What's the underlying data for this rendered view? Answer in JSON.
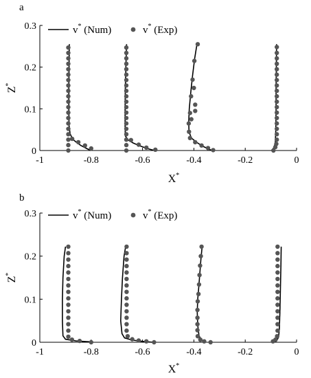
{
  "chart_data": [
    {
      "type": "scatter",
      "panel_label": "a",
      "xlabel": "X",
      "xlabel_sup": "*",
      "ylabel": "Z",
      "ylabel_sup": "*",
      "xlim": [
        -1,
        0
      ],
      "ylim": [
        0,
        0.3
      ],
      "xticks": [
        "-1",
        "-0.8",
        "-0.6",
        "-0.4",
        "-0.2",
        "0"
      ],
      "yticks": [
        "0",
        "0.1",
        "0.2",
        "0.3"
      ],
      "xtick_values": [
        -1,
        -0.8,
        -0.6,
        -0.4,
        -0.2,
        0
      ],
      "ytick_values": [
        0,
        0.1,
        0.2,
        0.3
      ],
      "legend": {
        "position": "top-left",
        "num_label": "v",
        "num_suffix": " (Num)",
        "exp_label": "v",
        "exp_suffix": " (Exp)",
        "sup": "*"
      },
      "series": [
        {
          "name": "v* (Num)",
          "style": "line",
          "color": "#000000",
          "curves": [
            [
              [
                -0.885,
                0.255
              ],
              [
                -0.886,
                0.2
              ],
              [
                -0.887,
                0.15
              ],
              [
                -0.887,
                0.1
              ],
              [
                -0.886,
                0.06
              ],
              [
                -0.882,
                0.04
              ],
              [
                -0.872,
                0.027
              ],
              [
                -0.858,
                0.02
              ],
              [
                -0.84,
                0.012
              ],
              [
                -0.818,
                0.005
              ],
              [
                -0.802,
                0.0
              ]
            ],
            [
              [
                -0.662,
                0.255
              ],
              [
                -0.665,
                0.2
              ],
              [
                -0.667,
                0.15
              ],
              [
                -0.668,
                0.1
              ],
              [
                -0.668,
                0.06
              ],
              [
                -0.667,
                0.035
              ],
              [
                -0.656,
                0.025
              ],
              [
                -0.636,
                0.018
              ],
              [
                -0.61,
                0.011
              ],
              [
                -0.583,
                0.005
              ],
              [
                -0.553,
                0.0
              ]
            ],
            [
              [
                -0.388,
                0.255
              ],
              [
                -0.397,
                0.22
              ],
              [
                -0.405,
                0.18
              ],
              [
                -0.412,
                0.14
              ],
              [
                -0.418,
                0.1
              ],
              [
                -0.42,
                0.07
              ],
              [
                -0.419,
                0.045
              ],
              [
                -0.41,
                0.03
              ],
              [
                -0.39,
                0.02
              ],
              [
                -0.365,
                0.01
              ],
              [
                -0.33,
                0.0
              ]
            ],
            [
              [
                -0.078,
                0.255
              ],
              [
                -0.079,
                0.2
              ],
              [
                -0.08,
                0.15
              ],
              [
                -0.08,
                0.1
              ],
              [
                -0.081,
                0.05
              ],
              [
                -0.083,
                0.02
              ],
              [
                -0.088,
                0.007
              ],
              [
                -0.098,
                0.0
              ]
            ]
          ]
        },
        {
          "name": "v* (Exp)",
          "style": "markers",
          "color": "#555555",
          "points": [
            [
              -0.889,
              0.0
            ],
            [
              -0.889,
              0.013
            ],
            [
              -0.889,
              0.026
            ],
            [
              -0.889,
              0.039
            ],
            [
              -0.889,
              0.052
            ],
            [
              -0.889,
              0.065
            ],
            [
              -0.889,
              0.078
            ],
            [
              -0.889,
              0.091
            ],
            [
              -0.889,
              0.104
            ],
            [
              -0.889,
              0.117
            ],
            [
              -0.889,
              0.13
            ],
            [
              -0.889,
              0.143
            ],
            [
              -0.889,
              0.156
            ],
            [
              -0.889,
              0.169
            ],
            [
              -0.889,
              0.182
            ],
            [
              -0.889,
              0.195
            ],
            [
              -0.889,
              0.208
            ],
            [
              -0.889,
              0.221
            ],
            [
              -0.889,
              0.234
            ],
            [
              -0.889,
              0.247
            ],
            [
              -0.874,
              0.028
            ],
            [
              -0.85,
              0.02
            ],
            [
              -0.824,
              0.012
            ],
            [
              -0.8,
              0.005
            ],
            [
              -0.663,
              0.0
            ],
            [
              -0.663,
              0.013
            ],
            [
              -0.663,
              0.026
            ],
            [
              -0.663,
              0.039
            ],
            [
              -0.663,
              0.052
            ],
            [
              -0.663,
              0.065
            ],
            [
              -0.663,
              0.078
            ],
            [
              -0.663,
              0.091
            ],
            [
              -0.663,
              0.104
            ],
            [
              -0.663,
              0.117
            ],
            [
              -0.663,
              0.13
            ],
            [
              -0.663,
              0.143
            ],
            [
              -0.663,
              0.156
            ],
            [
              -0.663,
              0.169
            ],
            [
              -0.663,
              0.182
            ],
            [
              -0.663,
              0.195
            ],
            [
              -0.663,
              0.208
            ],
            [
              -0.663,
              0.221
            ],
            [
              -0.663,
              0.234
            ],
            [
              -0.663,
              0.247
            ],
            [
              -0.645,
              0.025
            ],
            [
              -0.615,
              0.014
            ],
            [
              -0.585,
              0.007
            ],
            [
              -0.55,
              0.002
            ],
            [
              -0.385,
              0.255
            ],
            [
              -0.398,
              0.215
            ],
            [
              -0.405,
              0.17
            ],
            [
              -0.411,
              0.13
            ],
            [
              -0.415,
              0.09
            ],
            [
              -0.42,
              0.065
            ],
            [
              -0.419,
              0.045
            ],
            [
              -0.415,
              0.03
            ],
            [
              -0.395,
              0.02
            ],
            [
              -0.37,
              0.012
            ],
            [
              -0.345,
              0.006
            ],
            [
              -0.325,
              0.001
            ],
            [
              -0.395,
              0.095
            ],
            [
              -0.395,
              0.11
            ],
            [
              -0.4,
              0.15
            ],
            [
              -0.41,
              0.075
            ],
            [
              -0.077,
              0.248
            ],
            [
              -0.077,
              0.234
            ],
            [
              -0.077,
              0.221
            ],
            [
              -0.077,
              0.208
            ],
            [
              -0.077,
              0.195
            ],
            [
              -0.077,
              0.182
            ],
            [
              -0.077,
              0.169
            ],
            [
              -0.077,
              0.156
            ],
            [
              -0.077,
              0.143
            ],
            [
              -0.077,
              0.13
            ],
            [
              -0.077,
              0.117
            ],
            [
              -0.077,
              0.104
            ],
            [
              -0.077,
              0.091
            ],
            [
              -0.077,
              0.078
            ],
            [
              -0.077,
              0.065
            ],
            [
              -0.077,
              0.052
            ],
            [
              -0.077,
              0.039
            ],
            [
              -0.077,
              0.026
            ],
            [
              -0.079,
              0.016
            ],
            [
              -0.083,
              0.008
            ],
            [
              -0.09,
              0.0
            ]
          ]
        }
      ]
    },
    {
      "type": "scatter",
      "panel_label": "b",
      "xlabel": "X",
      "xlabel_sup": "*",
      "ylabel": "Z",
      "ylabel_sup": "*",
      "xlim": [
        -1,
        0
      ],
      "ylim": [
        0,
        0.3
      ],
      "xticks": [
        "-1",
        "-0.8",
        "-0.6",
        "-0.4",
        "-0.2",
        "0"
      ],
      "yticks": [
        "0",
        "0.1",
        "0.2",
        "0.3"
      ],
      "xtick_values": [
        -1,
        -0.8,
        -0.6,
        -0.4,
        -0.2,
        0
      ],
      "ytick_values": [
        0,
        0.1,
        0.2,
        0.3
      ],
      "legend": {
        "position": "top-left",
        "num_label": "v",
        "num_suffix": " (Num)",
        "exp_label": "v",
        "exp_suffix": " (Exp)",
        "sup": "*"
      },
      "series": [
        {
          "name": "v* (Num)",
          "style": "line",
          "color": "#000000",
          "curves": [
            [
              [
                -0.9,
                0.222
              ],
              [
                -0.905,
                0.2
              ],
              [
                -0.91,
                0.15
              ],
              [
                -0.912,
                0.1
              ],
              [
                -0.912,
                0.05
              ],
              [
                -0.91,
                0.015
              ],
              [
                -0.9,
                0.007
              ],
              [
                -0.86,
                0.003
              ],
              [
                -0.8,
                0.001
              ]
            ],
            [
              [
                -0.665,
                0.225
              ],
              [
                -0.672,
                0.2
              ],
              [
                -0.678,
                0.15
              ],
              [
                -0.682,
                0.1
              ],
              [
                -0.685,
                0.05
              ],
              [
                -0.68,
                0.02
              ],
              [
                -0.67,
                0.01
              ],
              [
                -0.64,
                0.005
              ],
              [
                -0.6,
                0.002
              ],
              [
                -0.56,
                0.0
              ]
            ],
            [
              [
                -0.368,
                0.222
              ],
              [
                -0.373,
                0.19
              ],
              [
                -0.378,
                0.15
              ],
              [
                -0.382,
                0.12
              ],
              [
                -0.385,
                0.1
              ],
              [
                -0.387,
                0.07
              ],
              [
                -0.385,
                0.04
              ],
              [
                -0.38,
                0.015
              ],
              [
                -0.37,
                0.005
              ],
              [
                -0.355,
                0.0
              ]
            ],
            [
              [
                -0.06,
                0.222
              ],
              [
                -0.061,
                0.18
              ],
              [
                -0.063,
                0.12
              ],
              [
                -0.065,
                0.07
              ],
              [
                -0.067,
                0.03
              ],
              [
                -0.07,
                0.012
              ],
              [
                -0.078,
                0.003
              ],
              [
                -0.088,
                0.0
              ]
            ]
          ]
        },
        {
          "name": "v* (Exp)",
          "style": "markers",
          "color": "#555555",
          "points": [
            [
              -0.889,
              0.222
            ],
            [
              -0.889,
              0.207
            ],
            [
              -0.889,
              0.192
            ],
            [
              -0.889,
              0.177
            ],
            [
              -0.889,
              0.162
            ],
            [
              -0.889,
              0.147
            ],
            [
              -0.889,
              0.132
            ],
            [
              -0.889,
              0.117
            ],
            [
              -0.889,
              0.102
            ],
            [
              -0.889,
              0.087
            ],
            [
              -0.889,
              0.072
            ],
            [
              -0.889,
              0.057
            ],
            [
              -0.889,
              0.042
            ],
            [
              -0.889,
              0.027
            ],
            [
              -0.889,
              0.013
            ],
            [
              -0.875,
              0.006
            ],
            [
              -0.845,
              0.003
            ],
            [
              -0.8,
              0.0
            ],
            [
              -0.662,
              0.222
            ],
            [
              -0.662,
              0.207
            ],
            [
              -0.662,
              0.192
            ],
            [
              -0.662,
              0.177
            ],
            [
              -0.662,
              0.162
            ],
            [
              -0.662,
              0.147
            ],
            [
              -0.662,
              0.132
            ],
            [
              -0.662,
              0.117
            ],
            [
              -0.662,
              0.102
            ],
            [
              -0.662,
              0.087
            ],
            [
              -0.662,
              0.072
            ],
            [
              -0.662,
              0.057
            ],
            [
              -0.662,
              0.042
            ],
            [
              -0.662,
              0.027
            ],
            [
              -0.658,
              0.014
            ],
            [
              -0.64,
              0.007
            ],
            [
              -0.615,
              0.004
            ],
            [
              -0.585,
              0.002
            ],
            [
              -0.555,
              0.0
            ],
            [
              -0.37,
              0.222
            ],
            [
              -0.373,
              0.2
            ],
            [
              -0.376,
              0.178
            ],
            [
              -0.378,
              0.156
            ],
            [
              -0.38,
              0.134
            ],
            [
              -0.382,
              0.112
            ],
            [
              -0.385,
              0.095
            ],
            [
              -0.386,
              0.075
            ],
            [
              -0.386,
              0.057
            ],
            [
              -0.386,
              0.042
            ],
            [
              -0.386,
              0.028
            ],
            [
              -0.385,
              0.014
            ],
            [
              -0.375,
              0.006
            ],
            [
              -0.36,
              0.002
            ],
            [
              -0.335,
              0.0
            ],
            [
              -0.074,
              0.222
            ],
            [
              -0.074,
              0.207
            ],
            [
              -0.074,
              0.192
            ],
            [
              -0.074,
              0.177
            ],
            [
              -0.074,
              0.162
            ],
            [
              -0.074,
              0.147
            ],
            [
              -0.074,
              0.132
            ],
            [
              -0.074,
              0.117
            ],
            [
              -0.074,
              0.102
            ],
            [
              -0.074,
              0.087
            ],
            [
              -0.074,
              0.072
            ],
            [
              -0.074,
              0.057
            ],
            [
              -0.074,
              0.042
            ],
            [
              -0.074,
              0.027
            ],
            [
              -0.076,
              0.014
            ],
            [
              -0.082,
              0.006
            ],
            [
              -0.092,
              0.002
            ]
          ]
        }
      ]
    }
  ]
}
